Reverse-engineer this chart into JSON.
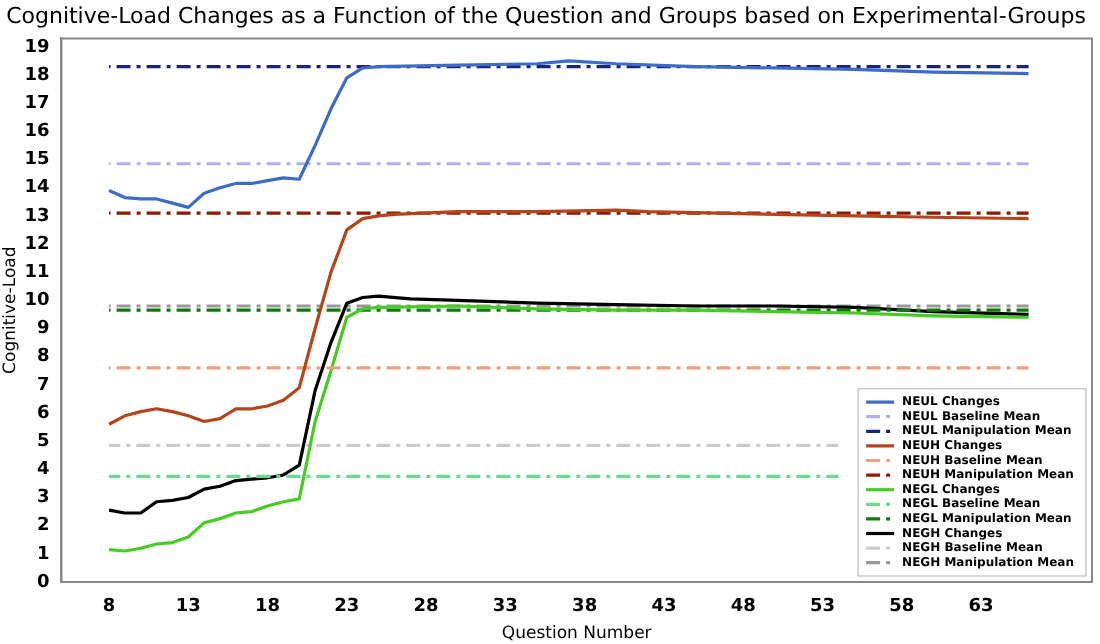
{
  "chart_data": {
    "type": "line",
    "title": "Cognitive-Load Changes as a Function of the Question and Groups based on Experimental-Groups",
    "xlabel": "Question Number",
    "ylabel": "Cognitive-Load",
    "xlim": [
      5,
      70
    ],
    "xticks": [
      8,
      13,
      18,
      23,
      28,
      33,
      38,
      43,
      48,
      53,
      58,
      63
    ],
    "ylim": [
      0,
      19.3
    ],
    "yticks": [
      0,
      1,
      2,
      3,
      4,
      5,
      6,
      7,
      8,
      9,
      10,
      11,
      12,
      13,
      14,
      15,
      16,
      17,
      18,
      19
    ],
    "grid": false,
    "legend": "bottom right",
    "marker": "none",
    "series": [
      {
        "name": "NEUL Changes",
        "color": "#3d6bc9",
        "line_style": "solid",
        "x": [
          8,
          9,
          10,
          11,
          12,
          13,
          14,
          15,
          16,
          17,
          18,
          19,
          20,
          21,
          22,
          23,
          24,
          25,
          30,
          35,
          37,
          40,
          45,
          50,
          55,
          60,
          66
        ],
        "values": [
          13.9,
          13.65,
          13.6,
          13.6,
          13.45,
          13.3,
          13.8,
          14.0,
          14.15,
          14.15,
          14.25,
          14.35,
          14.3,
          15.5,
          16.8,
          17.9,
          18.25,
          18.3,
          18.35,
          18.4,
          18.5,
          18.4,
          18.3,
          18.25,
          18.2,
          18.1,
          18.05
        ]
      },
      {
        "name": "NEUL Baseline Mean",
        "color": "#b0b0f0",
        "line_style": "dashed",
        "x": [
          8,
          66
        ],
        "values": [
          14.85,
          14.85
        ]
      },
      {
        "name": "NEUL Manipulation Mean",
        "color": "#1a237e",
        "line_style": "dashed",
        "x": [
          8,
          66
        ],
        "values": [
          18.3,
          18.3
        ]
      },
      {
        "name": "NEUH Changes",
        "color": "#b5441b",
        "line_style": "solid",
        "x": [
          8,
          9,
          10,
          11,
          12,
          13,
          14,
          15,
          16,
          17,
          18,
          19,
          20,
          21,
          22,
          23,
          24,
          25,
          26,
          30,
          35,
          40,
          42,
          50,
          55,
          60,
          66
        ],
        "values": [
          5.6,
          5.9,
          6.05,
          6.15,
          6.05,
          5.9,
          5.7,
          5.8,
          6.15,
          6.15,
          6.25,
          6.45,
          6.9,
          9.0,
          11.0,
          12.5,
          12.9,
          13.0,
          13.05,
          13.15,
          13.15,
          13.2,
          13.15,
          13.05,
          13.0,
          12.95,
          12.9
        ]
      },
      {
        "name": "NEUH Baseline Mean",
        "color": "#f0a080",
        "line_style": "dashed",
        "x": [
          8,
          66
        ],
        "values": [
          7.6,
          7.6
        ]
      },
      {
        "name": "NEUH Manipulation Mean",
        "color": "#8b1a00",
        "line_style": "dashed",
        "x": [
          8,
          66
        ],
        "values": [
          13.1,
          13.1
        ]
      },
      {
        "name": "NEGL Changes",
        "color": "#44cc22",
        "line_style": "solid",
        "x": [
          8,
          9,
          10,
          11,
          12,
          13,
          14,
          15,
          16,
          17,
          18,
          19,
          20,
          21,
          22,
          23,
          24,
          25,
          30,
          35,
          40,
          45,
          50,
          55,
          60,
          66
        ],
        "values": [
          1.15,
          1.1,
          1.2,
          1.35,
          1.4,
          1.6,
          2.1,
          2.25,
          2.45,
          2.5,
          2.7,
          2.85,
          2.95,
          5.7,
          7.5,
          9.4,
          9.7,
          9.75,
          9.8,
          9.7,
          9.65,
          9.65,
          9.6,
          9.55,
          9.45,
          9.4
        ]
      },
      {
        "name": "NEGL Baseline Mean",
        "color": "#66dd88",
        "line_style": "dashed",
        "x": [
          8,
          54
        ],
        "values": [
          3.75,
          3.75
        ]
      },
      {
        "name": "NEGL Manipulation Mean",
        "color": "#117711",
        "line_style": "dashed",
        "x": [
          8,
          66
        ],
        "values": [
          9.65,
          9.65
        ]
      },
      {
        "name": "NEGH Changes",
        "color": "#000000",
        "line_style": "solid",
        "x": [
          8,
          9,
          10,
          11,
          12,
          13,
          14,
          15,
          16,
          17,
          18,
          19,
          20,
          21,
          22,
          23,
          24,
          25,
          27,
          30,
          35,
          40,
          45,
          50,
          55,
          60,
          66
        ],
        "values": [
          2.55,
          2.45,
          2.45,
          2.85,
          2.9,
          3.0,
          3.3,
          3.4,
          3.6,
          3.65,
          3.7,
          3.8,
          4.15,
          6.8,
          8.5,
          9.9,
          10.1,
          10.15,
          10.05,
          10.0,
          9.9,
          9.85,
          9.8,
          9.8,
          9.75,
          9.6,
          9.5
        ]
      },
      {
        "name": "NEGH Baseline Mean",
        "color": "#cccccc",
        "line_style": "dashed",
        "x": [
          8,
          54
        ],
        "values": [
          4.85,
          4.85
        ]
      },
      {
        "name": "NEGH Manipulation Mean",
        "color": "#999999",
        "line_style": "dashed",
        "x": [
          8,
          66
        ],
        "values": [
          9.8,
          9.8
        ]
      }
    ]
  }
}
